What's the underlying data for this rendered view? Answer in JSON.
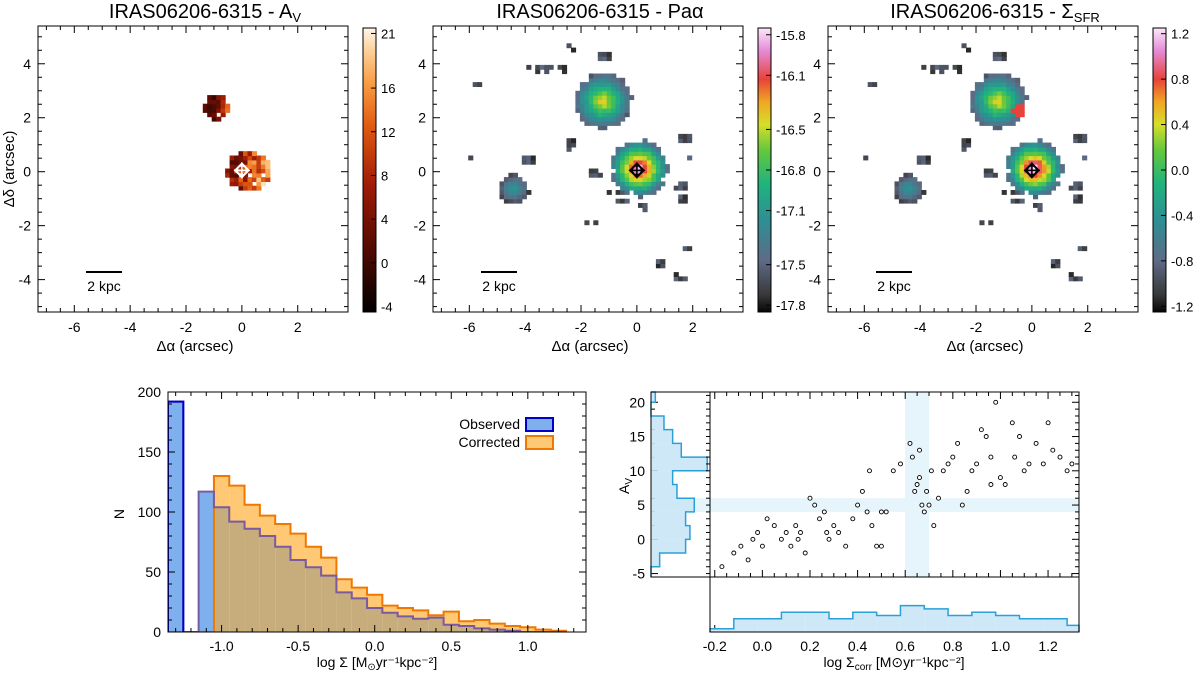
{
  "chart_data": [
    {
      "type": "heatmap",
      "title": "IRAS06206-6315 - A",
      "title_sub": "V",
      "xlabel": "Δα (arcsec)",
      "ylabel": "Δδ (arcsec)",
      "xlim": [
        -7.3,
        3.8
      ],
      "ylim": [
        -5.2,
        5.4
      ],
      "xticks": [
        "-6",
        "-4",
        "-2",
        "0",
        "2"
      ],
      "yticks": [
        "-4",
        "-2",
        "0",
        "2",
        "4"
      ],
      "scale_bar": "2 kpc",
      "colorbar": {
        "ticks": [
          "21",
          "16",
          "12",
          "8",
          "4",
          "0",
          "-4"
        ],
        "range": [
          -4.5,
          21.5
        ],
        "colormap": "hot"
      }
    },
    {
      "type": "heatmap",
      "title": "IRAS06206-6315 - Paα",
      "xlabel": "Δα (arcsec)",
      "xlim": [
        -7.3,
        3.8
      ],
      "ylim": [
        -5.2,
        5.4
      ],
      "xticks": [
        "-6",
        "-4",
        "-2",
        "0",
        "2"
      ],
      "yticks": [
        "-4",
        "-2",
        "0",
        "2",
        "4"
      ],
      "scale_bar": "2 kpc",
      "colorbar": {
        "ticks": [
          "-15.8",
          "-16.1",
          "-16.5",
          "-16.8",
          "-17.1",
          "-17.5",
          "-17.8"
        ],
        "range": [
          -17.85,
          -15.75
        ],
        "colormap": "rainbow"
      }
    },
    {
      "type": "heatmap",
      "title": "IRAS06206-6315 - Σ",
      "title_sub": "SFR",
      "xlabel": "Δα (arcsec)",
      "xlim": [
        -7.3,
        3.8
      ],
      "ylim": [
        -5.2,
        5.4
      ],
      "xticks": [
        "-6",
        "-4",
        "-2",
        "0",
        "2"
      ],
      "yticks": [
        "-4",
        "-2",
        "0",
        "2",
        "4"
      ],
      "scale_bar": "2 kpc",
      "colorbar": {
        "ticks": [
          "1.2",
          "0.8",
          "0.4",
          "0.0",
          "-0.4",
          "-0.8",
          "-1.2"
        ],
        "range": [
          -1.25,
          1.25
        ],
        "colormap": "rainbow"
      }
    },
    {
      "type": "bar",
      "subtype": "step-histogram",
      "xlabel": "log Σ [M",
      "xlabel_sub": "⊙",
      "xlabel_rest": "yr⁻¹kpc⁻²]",
      "ylabel": "N",
      "xlim": [
        -1.35,
        1.38
      ],
      "ylim": [
        0,
        200
      ],
      "xticks": [
        "-1.0",
        "-0.5",
        "0.0",
        "0.5",
        "1.0"
      ],
      "yticks": [
        "0",
        "50",
        "100",
        "150",
        "200"
      ],
      "bin_edges": [
        -1.35,
        -1.25,
        -1.15,
        -1.05,
        -0.95,
        -0.85,
        -0.75,
        -0.65,
        -0.55,
        -0.45,
        -0.35,
        -0.25,
        -0.15,
        -0.05,
        0.05,
        0.15,
        0.25,
        0.35,
        0.45,
        0.55,
        0.65,
        0.75,
        0.85,
        0.95,
        1.05,
        1.15,
        1.25
      ],
      "series": [
        {
          "name": "Observed",
          "color": "#0000cc",
          "fill": "#7fb0ee",
          "values": [
            192,
            0,
            117,
            104,
            92,
            86,
            80,
            71,
            60,
            54,
            47,
            33,
            28,
            20,
            16,
            13,
            11,
            12,
            6,
            5,
            3,
            2,
            1,
            0,
            0,
            0
          ]
        },
        {
          "name": "Corrected",
          "color": "#f07800",
          "fill": "#ffc874",
          "values": [
            0,
            0,
            0,
            130,
            122,
            106,
            97,
            90,
            82,
            71,
            62,
            44,
            37,
            31,
            22,
            20,
            18,
            14,
            17,
            9,
            10,
            7,
            5,
            4,
            2,
            1
          ]
        }
      ],
      "overlap_color": "#c8ad7c",
      "legend_position": "top-right"
    },
    {
      "type": "scatter",
      "xlabel": "log Σ",
      "xlabel_sub": "corr",
      "xlabel_rest": "[M⊙yr⁻¹kpc⁻²]",
      "ylabel": "A",
      "ylabel_sub": "V",
      "xlim": [
        -0.22,
        1.33
      ],
      "ylim": [
        -5.5,
        21.5
      ],
      "xticks": [
        "-0.2",
        "0.0",
        "0.2",
        "0.4",
        "0.6",
        "0.8",
        "1.0",
        "1.2"
      ],
      "yticks": [
        "-5",
        "0",
        "5",
        "10",
        "15",
        "20"
      ],
      "highlight_x": [
        0.6,
        0.7
      ],
      "highlight_y": [
        4,
        6
      ],
      "x": [
        -0.17,
        -0.12,
        -0.09,
        -0.06,
        -0.04,
        -0.02,
        0.0,
        0.02,
        0.05,
        0.08,
        0.1,
        0.12,
        0.14,
        0.16,
        0.18,
        0.2,
        0.22,
        0.24,
        0.26,
        0.28,
        0.3,
        0.32,
        0.35,
        0.38,
        0.4,
        0.42,
        0.44,
        0.46,
        0.48,
        0.5,
        0.52,
        0.55,
        0.58,
        0.62,
        0.63,
        0.64,
        0.65,
        0.66,
        0.67,
        0.68,
        0.69,
        0.7,
        0.72,
        0.74,
        0.76,
        0.78,
        0.8,
        0.82,
        0.84,
        0.86,
        0.88,
        0.9,
        0.92,
        0.94,
        0.96,
        0.98,
        1.0,
        1.02,
        1.05,
        1.08,
        1.1,
        1.12,
        1.15,
        1.18,
        1.2,
        1.22,
        1.25,
        1.28,
        1.3,
        0.15,
        0.27,
        0.45,
        0.5,
        0.66,
        0.71,
        0.96,
        1.06
      ],
      "y": [
        -4,
        -2,
        -1,
        -3,
        0,
        1,
        -1,
        3,
        2,
        0,
        1,
        -1,
        2,
        1,
        -2,
        6,
        5,
        3,
        4,
        0,
        2,
        1,
        -1,
        3,
        5,
        7,
        4,
        2,
        -1,
        -1,
        4,
        10,
        11,
        14,
        12,
        7,
        8,
        9,
        5,
        4,
        7,
        5,
        2,
        6,
        10,
        11,
        12,
        14,
        5,
        7,
        10,
        11,
        16,
        15,
        12,
        20,
        9,
        8,
        17,
        15,
        10,
        11,
        14,
        11,
        17,
        13,
        12,
        10,
        11,
        0,
        1,
        10,
        4,
        13,
        10,
        8,
        12
      ],
      "histogram_x_ylim": [
        0,
        15
      ],
      "histogram_y_xlim": [
        0,
        30
      ]
    }
  ]
}
